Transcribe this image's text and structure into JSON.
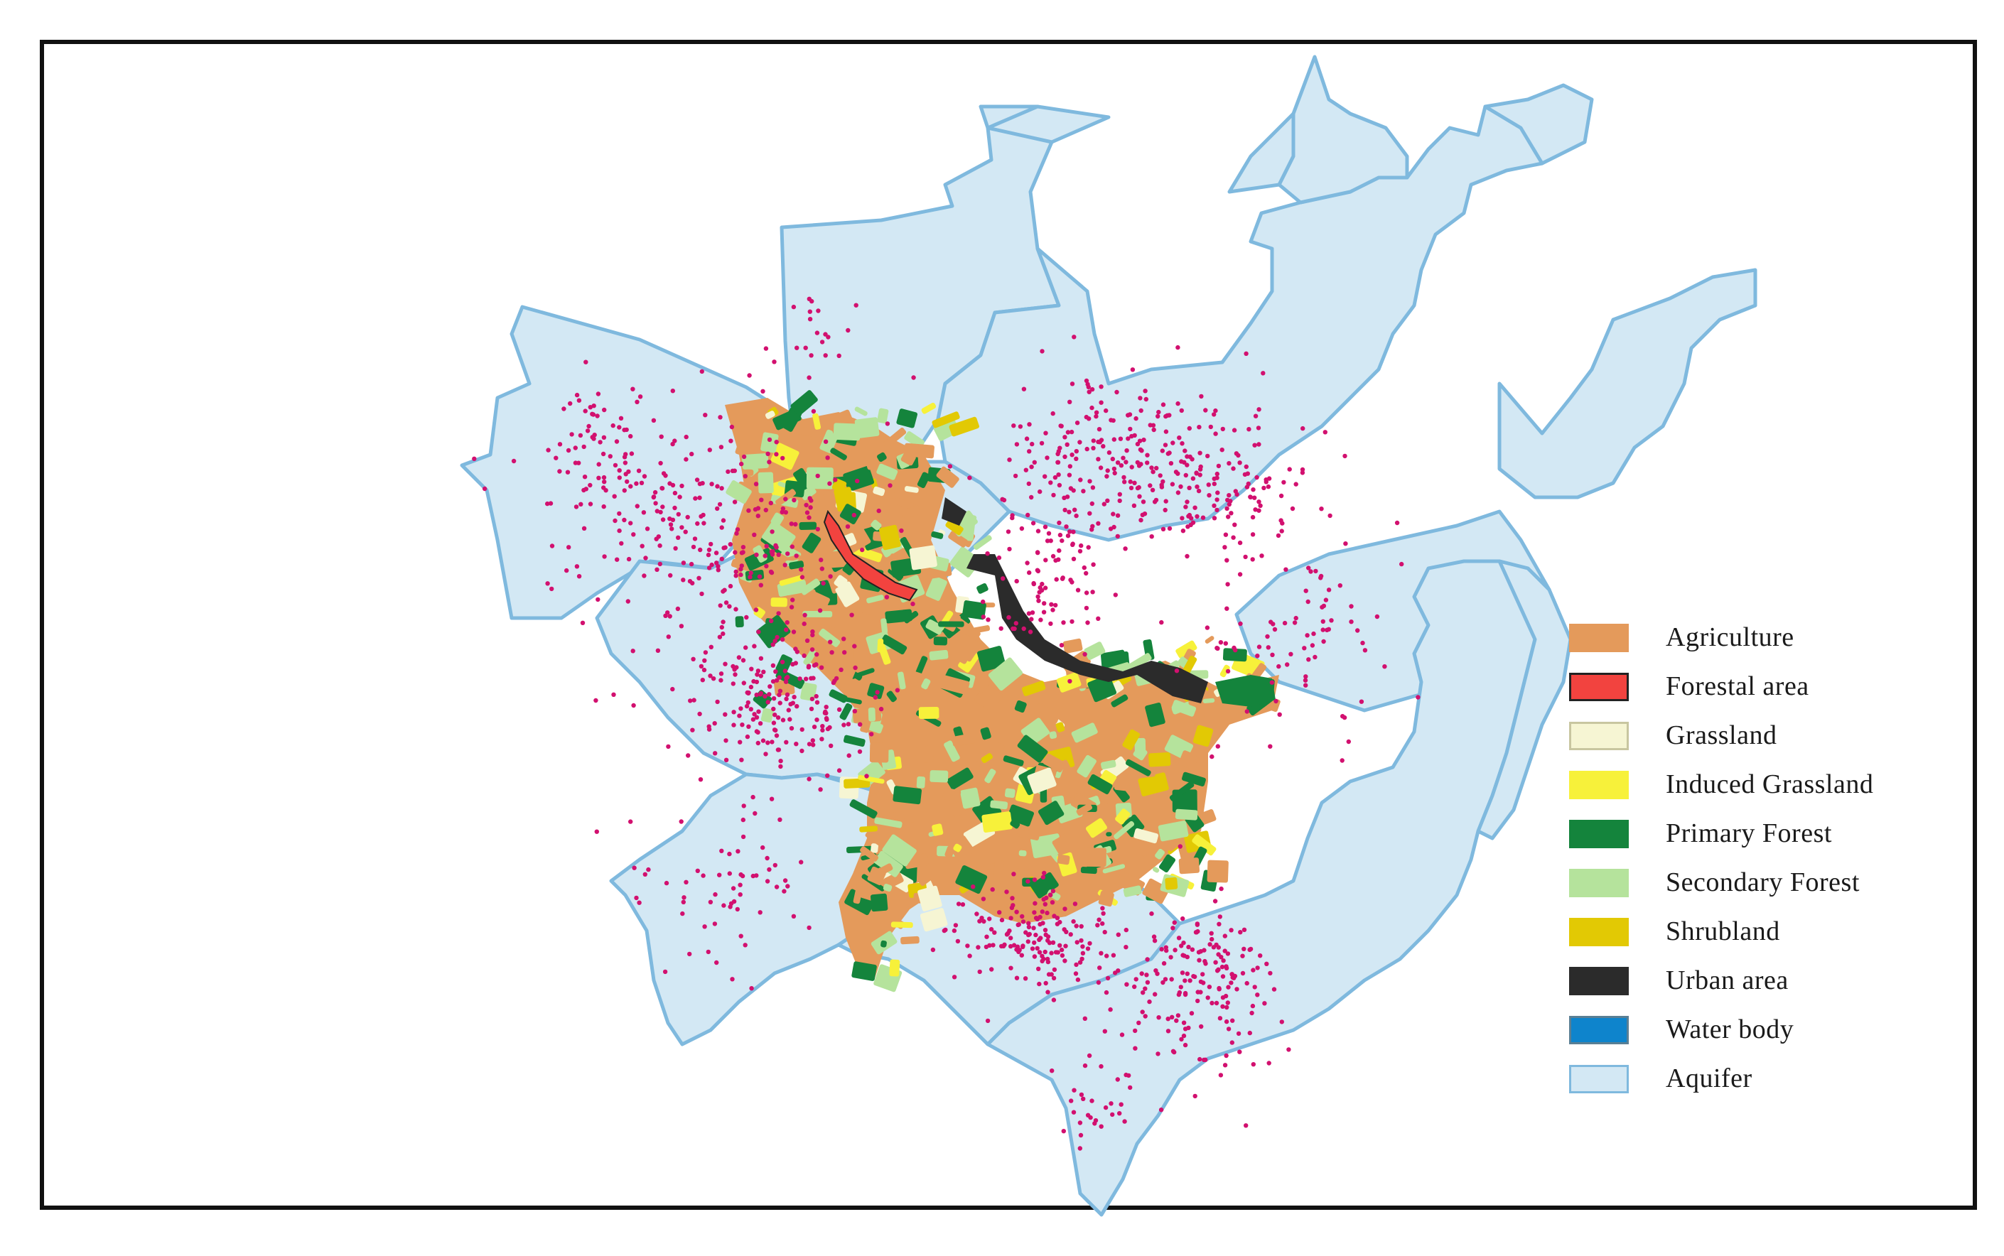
{
  "map": {
    "colors": {
      "aquifer_fill": "#d3e8f4",
      "aquifer_stroke": "#7fb9de",
      "points": "#d2106f"
    }
  },
  "legend": {
    "items": [
      {
        "label": "Agriculture",
        "fill": "#e49a5b",
        "border": "#e49a5b"
      },
      {
        "label": "Forestal area",
        "fill": "#f2433f",
        "border": "#222222"
      },
      {
        "label": "Grassland",
        "fill": "#f6f5d3",
        "border": "#c8c6a0"
      },
      {
        "label": "Induced Grassland",
        "fill": "#f7f13a",
        "border": "#f7f13a"
      },
      {
        "label": "Primary Forest",
        "fill": "#14843c",
        "border": "#14843c"
      },
      {
        "label": "Secondary Forest",
        "fill": "#b5e39c",
        "border": "#b5e39c"
      },
      {
        "label": "Shrubland",
        "fill": "#e2c904",
        "border": "#e2c904"
      },
      {
        "label": "Urban area",
        "fill": "#2b2b2b",
        "border": "#2b2b2b"
      },
      {
        "label": "Water body",
        "fill": "#0e84cc",
        "border": "#5a7f94"
      },
      {
        "label": "Aquifer",
        "fill": "#d3e8f4",
        "border": "#7fb9de"
      }
    ]
  }
}
